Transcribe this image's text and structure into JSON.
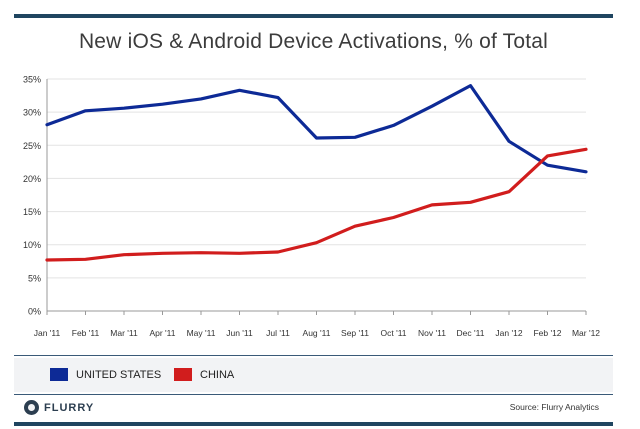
{
  "colors": {
    "united_states": "#0d2a96",
    "china": "#d11d1d",
    "grid": "#e3e3e3",
    "axis": "#999999"
  },
  "legend": {
    "us_label": "UNITED STATES",
    "china_label": "CHINA"
  },
  "footer": {
    "brand": "FLURRY",
    "source": "Source: Flurry Analytics"
  },
  "chart_data": {
    "type": "line",
    "title": "New iOS & Android Device Activations, % of Total",
    "xlabel": "",
    "ylabel": "",
    "ylim": [
      0,
      35
    ],
    "yticks": [
      0,
      5,
      10,
      15,
      20,
      25,
      30,
      35
    ],
    "ytick_labels": [
      "0%",
      "5%",
      "10%",
      "15%",
      "20%",
      "25%",
      "30%",
      "35%"
    ],
    "grid": true,
    "legend_position": "bottom-left",
    "categories": [
      "Jan '11",
      "Feb '11",
      "Mar '11",
      "Apr '11",
      "May '11",
      "Jun '11",
      "Jul '11",
      "Aug '11",
      "Sep '11",
      "Oct '11",
      "Nov '11",
      "Dec '11",
      "Jan '12",
      "Feb '12",
      "Mar '12"
    ],
    "series": [
      {
        "name": "UNITED STATES",
        "values": [
          28.1,
          30.2,
          30.6,
          31.2,
          32.0,
          33.3,
          32.2,
          26.1,
          26.2,
          28.0,
          30.9,
          34.0,
          25.6,
          22.0,
          21.0
        ]
      },
      {
        "name": "CHINA",
        "values": [
          7.7,
          7.8,
          8.5,
          8.7,
          8.8,
          8.7,
          8.9,
          10.3,
          12.8,
          14.1,
          16.0,
          16.4,
          18.0,
          23.4,
          24.4
        ]
      }
    ]
  }
}
